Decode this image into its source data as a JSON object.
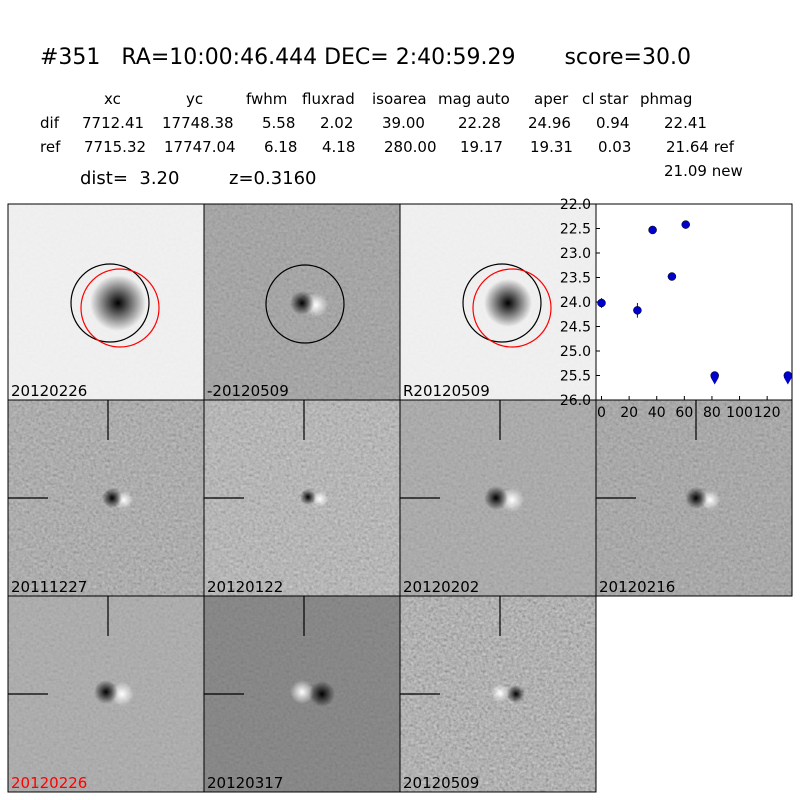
{
  "header": {
    "title": "#351   RA=10:00:46.444 DEC= 2:40:59.29       score=30.0"
  },
  "table": {
    "columns": [
      "xc",
      "yc",
      "fwhm",
      "fluxrad",
      "isoarea",
      "mag auto",
      "aper",
      "cl star",
      "phmag"
    ],
    "rows": [
      [
        "dif",
        "7712.41",
        "17748.38",
        "5.58",
        "2.02",
        "39.00",
        "22.28",
        "24.96",
        "0.94",
        "22.41"
      ],
      [
        "ref",
        "7715.32",
        "17747.04",
        "6.18",
        "4.18",
        "280.00",
        "19.17",
        "19.31",
        "0.03",
        "21.64 ref"
      ]
    ],
    "extra": "21.09 new"
  },
  "info": {
    "dist": "dist=  3.20",
    "z": "z=0.3160"
  },
  "panels": [
    {
      "label": "20120226"
    },
    {
      "label": "-20120509"
    },
    {
      "label": "R20120509"
    },
    {
      "label": "20111227"
    },
    {
      "label": "20120122"
    },
    {
      "label": "20120202"
    },
    {
      "label": "20120216"
    },
    {
      "label": "20120226",
      "label_color": "red"
    },
    {
      "label": "20120317"
    },
    {
      "label": "20120509"
    }
  ],
  "chart_data": {
    "type": "scatter",
    "color": "#0000cc",
    "x": [
      0,
      26,
      37,
      51,
      61,
      82,
      135
    ],
    "values": [
      24.02,
      24.17,
      22.53,
      23.48,
      22.42,
      25.5,
      25.5
    ],
    "errors": [
      0.1,
      0.15,
      0.03,
      0.06,
      0.03,
      0.05,
      0.05
    ],
    "upper_limits": [
      false,
      false,
      false,
      false,
      false,
      true,
      true
    ],
    "xlim": [
      -4,
      138
    ],
    "xticks": [
      0,
      20,
      40,
      60,
      80,
      100,
      120
    ],
    "ylim": [
      26,
      22
    ],
    "inverted": true,
    "yticks": [
      {
        "value": 22,
        "label": "22.0"
      },
      22.5,
      {
        "value": 23,
        "label": "23.0"
      },
      23.5,
      {
        "value": 24,
        "label": "24.0"
      },
      24.5,
      {
        "value": 25,
        "label": "25.0"
      },
      25.5,
      {
        "value": 26,
        "label": "26.0"
      }
    ]
  }
}
